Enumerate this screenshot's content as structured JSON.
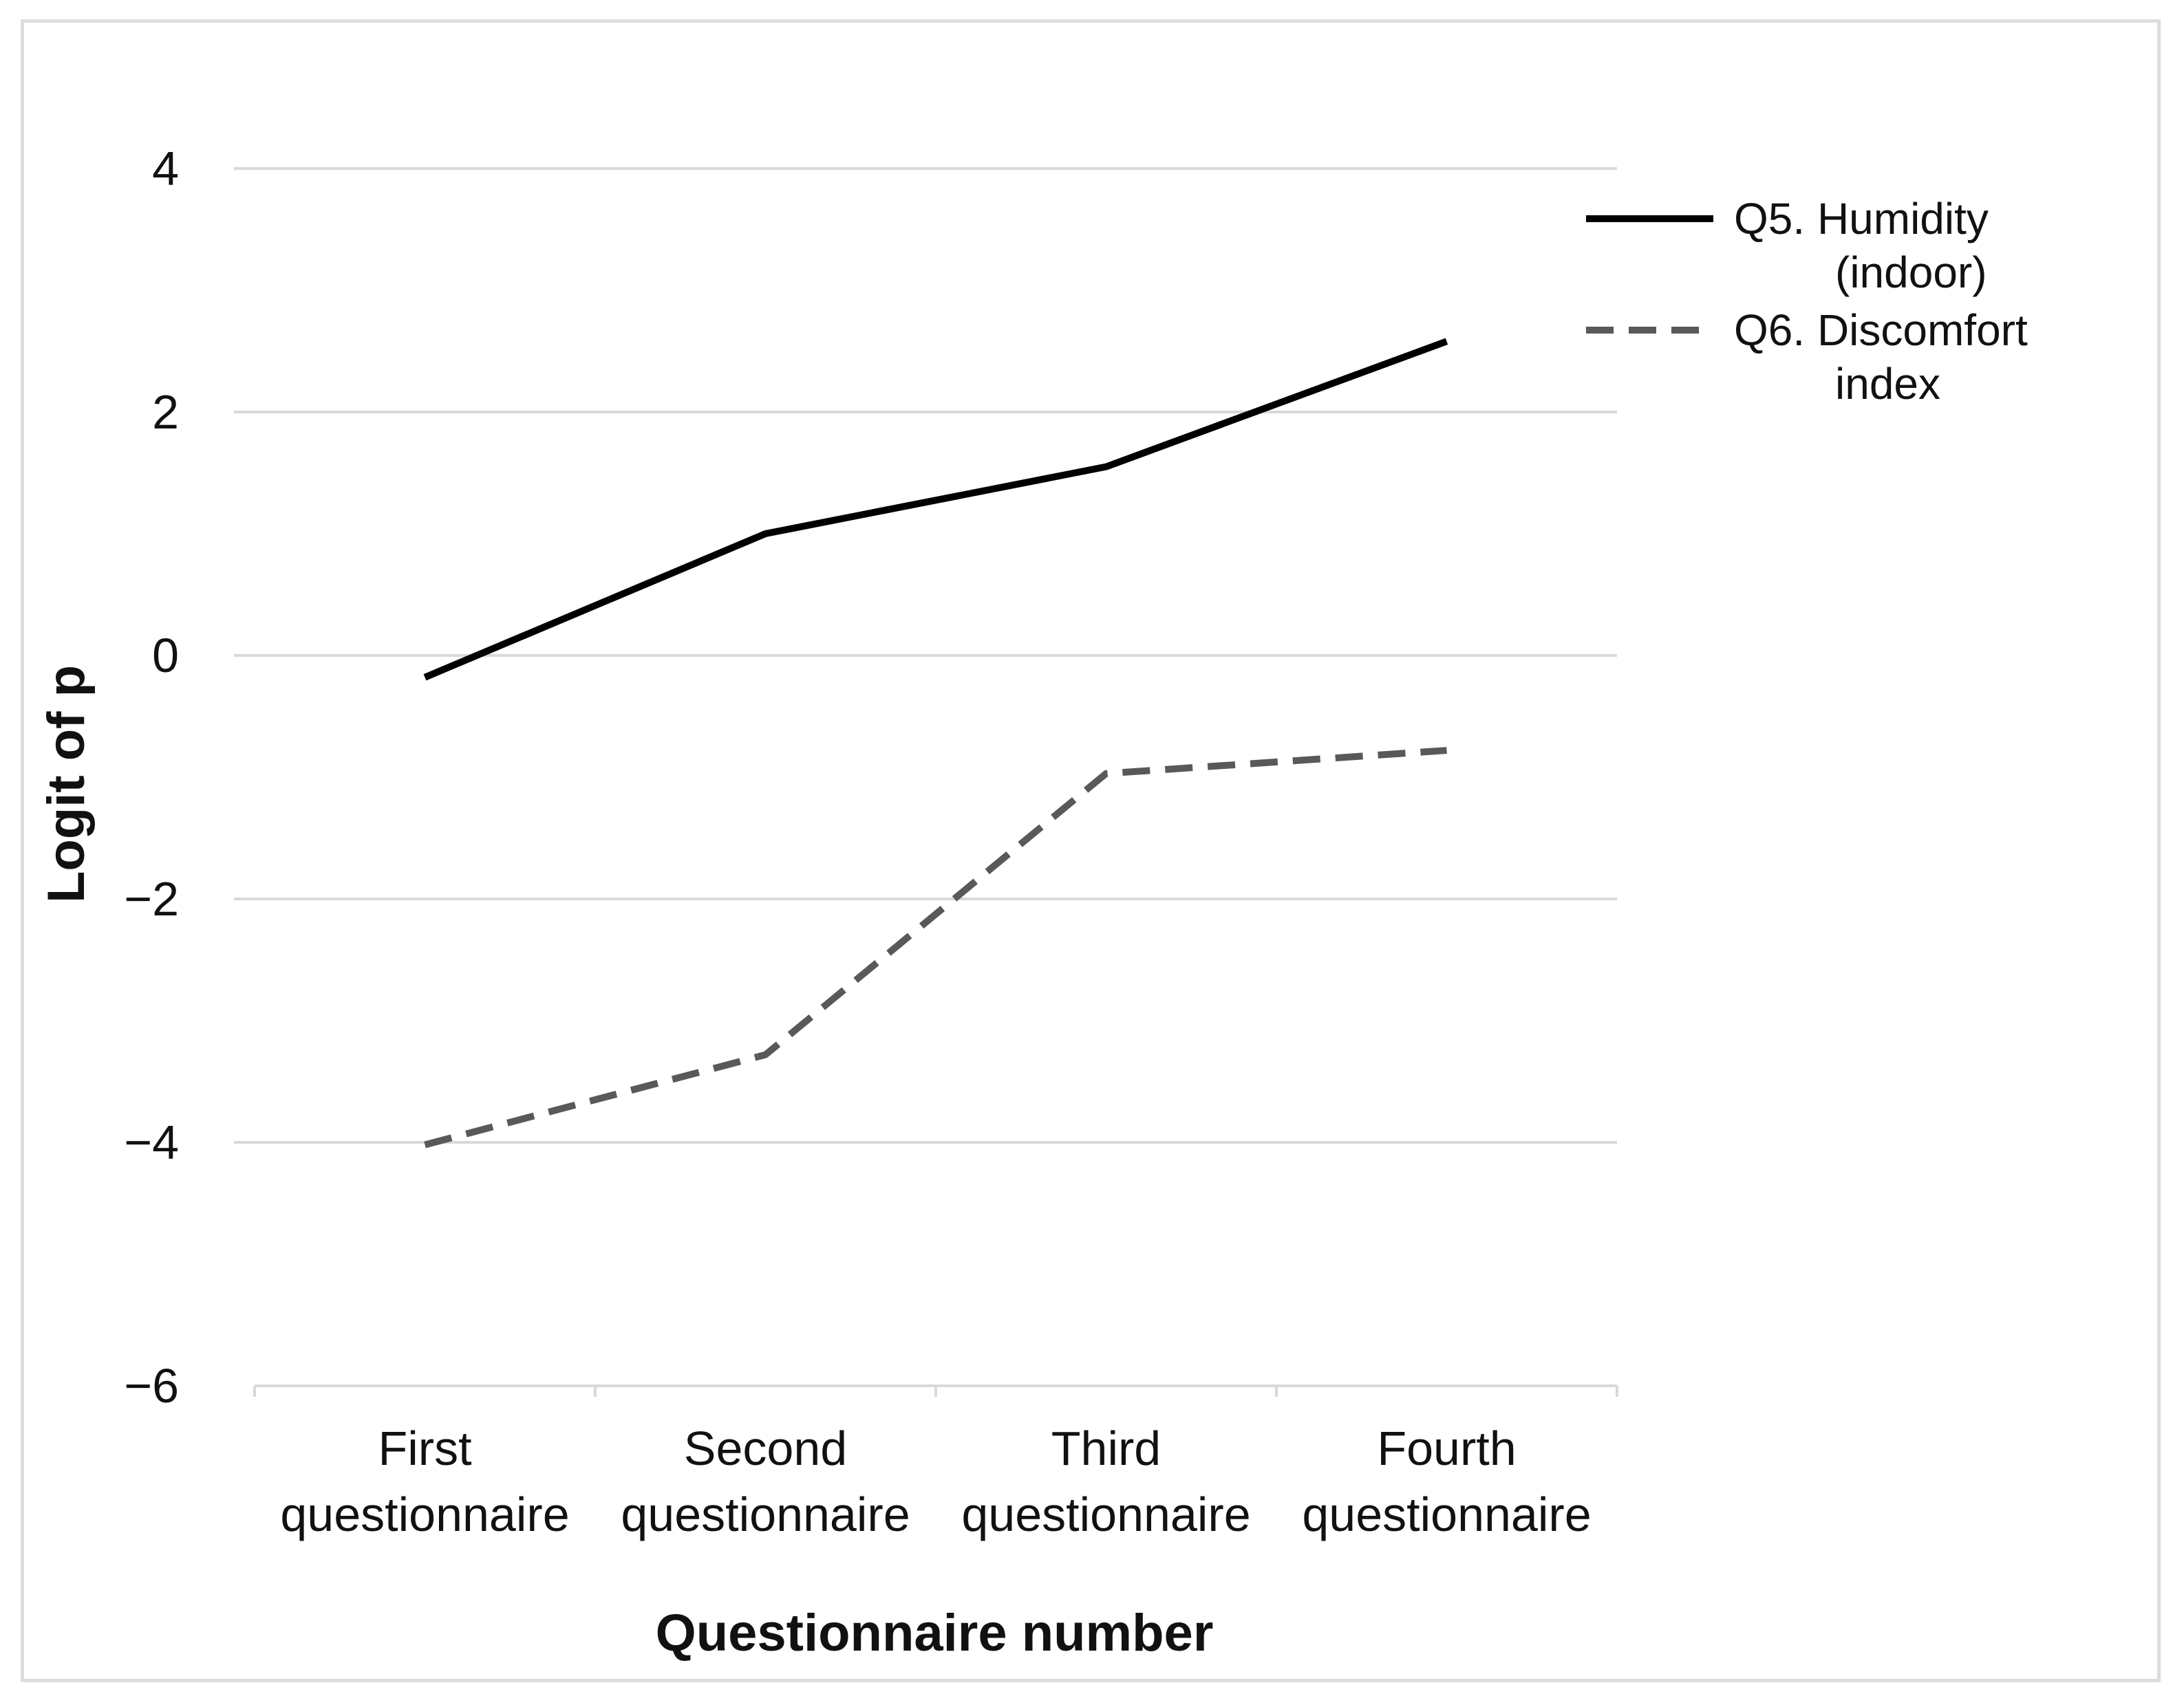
{
  "chart_data": {
    "type": "line",
    "title": "",
    "xlabel": "Questionnaire number",
    "ylabel": "Logit of p",
    "ylim": [
      -6,
      4
    ],
    "yticks": [
      4,
      2,
      0,
      -2,
      -4,
      -6
    ],
    "ytick_labels": [
      "4",
      "2",
      "0",
      "−2",
      "−4",
      "−6"
    ],
    "grid": true,
    "legend_position": "top-right",
    "categories": [
      [
        "First",
        "questionnaire"
      ],
      [
        "Second",
        "questionnaire"
      ],
      [
        "Third",
        "questionnaire"
      ],
      [
        "Fourth",
        "questionnaire"
      ]
    ],
    "series": [
      {
        "name_lines": [
          "Q5. Humidity",
          "(indoor)"
        ],
        "values": [
          -0.18,
          1.0,
          1.55,
          2.58
        ],
        "color": "#000000",
        "dash": "solid"
      },
      {
        "name_lines": [
          "Q6. Discomfort",
          "index"
        ],
        "values": [
          -4.02,
          -3.28,
          -0.97,
          -0.78
        ],
        "color": "#595959",
        "dash": "dashed"
      }
    ]
  }
}
